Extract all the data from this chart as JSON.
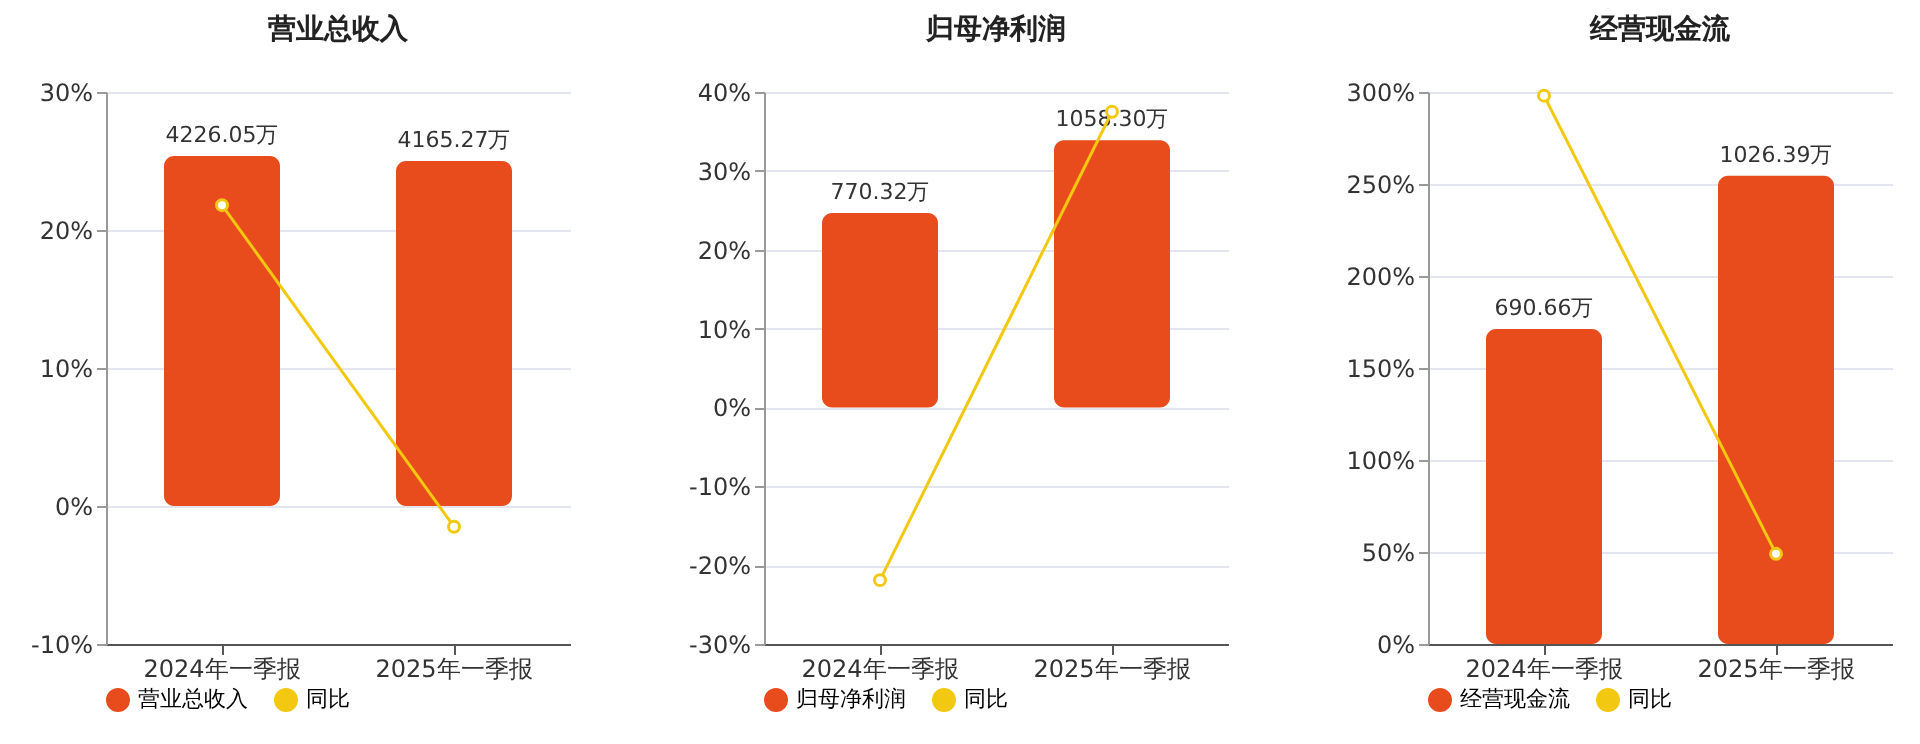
{
  "chart_data": [
    {
      "type": "bar",
      "title": "营业总收入",
      "categories": [
        "2024年一季报",
        "2025年一季报"
      ],
      "series": [
        {
          "name": "营业总收入",
          "color": "#e84c1c",
          "values": [
            4226.05,
            4165.27
          ],
          "value_labels": [
            "4226.05万",
            "4165.27万"
          ],
          "axis": "y2"
        },
        {
          "name": "同比",
          "type": "line",
          "color": "#f2c811",
          "values": [
            21.8,
            -1.5
          ],
          "marker": "circle"
        }
      ],
      "ylim": [
        -10,
        30
      ],
      "yticks": [
        {
          "value": -10,
          "label": "-10%"
        },
        {
          "value": 0,
          "label": "0%"
        },
        {
          "value": 10,
          "label": "10%"
        },
        {
          "value": 20,
          "label": "20%"
        },
        {
          "value": 30,
          "label": "30%"
        }
      ],
      "y2lim": [
        -1667,
        5000
      ],
      "grid": "y",
      "legend": "bottom"
    },
    {
      "type": "bar",
      "title": "归母净利润",
      "categories": [
        "2024年一季报",
        "2025年一季报"
      ],
      "series": [
        {
          "name": "归母净利润",
          "color": "#e84c1c",
          "values": [
            770.32,
            1058.3
          ],
          "value_labels": [
            "770.32万",
            "1058.30万"
          ],
          "axis": "y2"
        },
        {
          "name": "同比",
          "type": "line",
          "color": "#f2c811",
          "values": [
            -21.9,
            37.5
          ],
          "marker": "circle"
        }
      ],
      "ylim": [
        -30,
        40
      ],
      "yticks": [
        {
          "value": -30,
          "label": "-30%"
        },
        {
          "value": -20,
          "label": "-20%"
        },
        {
          "value": -10,
          "label": "-10%"
        },
        {
          "value": 0,
          "label": "0%"
        },
        {
          "value": 10,
          "label": "10%"
        },
        {
          "value": 20,
          "label": "20%"
        },
        {
          "value": 30,
          "label": "30%"
        },
        {
          "value": 40,
          "label": "40%"
        }
      ],
      "y2lim": [
        -937.5,
        1250
      ],
      "grid": "y",
      "legend": "bottom"
    },
    {
      "type": "bar",
      "title": "经营现金流",
      "categories": [
        "2024年一季报",
        "2025年一季报"
      ],
      "series": [
        {
          "name": "经营现金流",
          "color": "#e84c1c",
          "values": [
            690.66,
            1026.39
          ],
          "value_labels": [
            "690.66万",
            "1026.39万"
          ],
          "axis": "y2"
        },
        {
          "name": "同比",
          "type": "line",
          "color": "#f2c811",
          "values": [
            298,
            49
          ],
          "marker": "circle"
        }
      ],
      "ylim": [
        0,
        300
      ],
      "yticks": [
        {
          "value": 0,
          "label": "0%"
        },
        {
          "value": 50,
          "label": "50%"
        },
        {
          "value": 100,
          "label": "100%"
        },
        {
          "value": 150,
          "label": "150%"
        },
        {
          "value": 200,
          "label": "200%"
        },
        {
          "value": 250,
          "label": "250%"
        },
        {
          "value": 300,
          "label": "300%"
        }
      ],
      "y2lim": [
        0,
        1210
      ],
      "grid": "y",
      "legend": "bottom"
    }
  ]
}
